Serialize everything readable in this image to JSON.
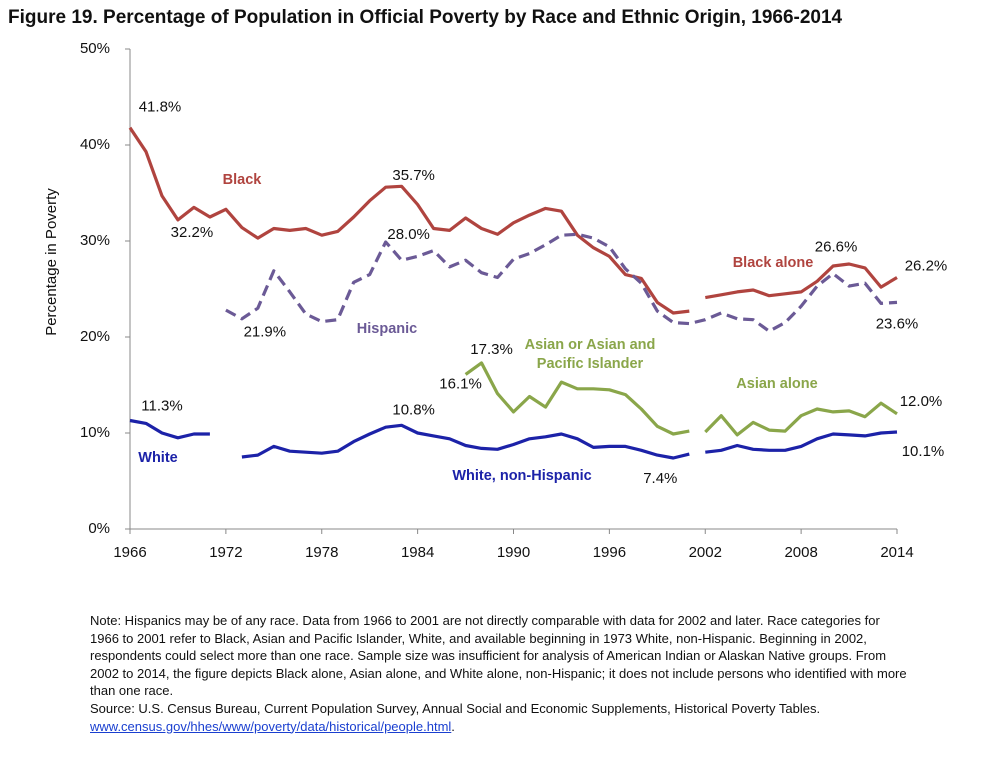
{
  "chart_data": {
    "type": "line",
    "title": "Figure 19. Percentage of Population in Official Poverty by Race and Ethnic Origin, 1966-2014",
    "y_label": "Percentage  in Poverty",
    "xlim": [
      1966,
      2014
    ],
    "xticks": [
      1966,
      1972,
      1978,
      1984,
      1990,
      1996,
      2002,
      2008,
      2014
    ],
    "ylim": [
      0,
      50
    ],
    "yticks": [
      {
        "value": 0,
        "label": "0%"
      },
      {
        "value": 10,
        "label": "10%"
      },
      {
        "value": 20,
        "label": "20%"
      },
      {
        "value": 30,
        "label": "30%"
      },
      {
        "value": 40,
        "label": "40%"
      },
      {
        "value": 50,
        "label": "50%"
      }
    ],
    "series": [
      {
        "name": "Black",
        "color": "#b0443f",
        "dash": false,
        "x": [
          1966,
          1967,
          1968,
          1969,
          1970,
          1971,
          1972,
          1973,
          1974,
          1975,
          1976,
          1977,
          1978,
          1979,
          1980,
          1981,
          1982,
          1983,
          1984,
          1985,
          1986,
          1987,
          1988,
          1989,
          1990,
          1991,
          1992,
          1993,
          1994,
          1995,
          1996,
          1997,
          1998,
          1999,
          2000,
          2001
        ],
        "values": [
          41.8,
          39.3,
          34.7,
          32.2,
          33.5,
          32.5,
          33.3,
          31.4,
          30.3,
          31.3,
          31.1,
          31.3,
          30.6,
          31.0,
          32.5,
          34.2,
          35.6,
          35.7,
          33.8,
          31.3,
          31.1,
          32.4,
          31.3,
          30.7,
          31.9,
          32.7,
          33.4,
          33.1,
          30.6,
          29.3,
          28.4,
          26.5,
          26.1,
          23.6,
          22.5,
          22.7
        ],
        "value_labels": [
          "41.8%",
          null,
          null,
          "32.2%",
          null,
          null,
          null,
          null,
          null,
          null,
          null,
          null,
          null,
          null,
          null,
          null,
          null,
          "35.7%",
          null,
          null,
          null,
          null,
          null,
          null,
          null,
          null,
          null,
          null,
          null,
          null,
          null,
          null,
          null,
          null,
          null,
          null
        ]
      },
      {
        "name": "Black alone",
        "color": "#b0443f",
        "dash": false,
        "x": [
          2002,
          2003,
          2004,
          2005,
          2006,
          2007,
          2008,
          2009,
          2010,
          2011,
          2012,
          2013,
          2014
        ],
        "values": [
          24.1,
          24.4,
          24.7,
          24.9,
          24.3,
          24.5,
          24.7,
          25.8,
          27.4,
          27.6,
          27.2,
          25.2,
          26.2
        ],
        "value_labels": [
          null,
          null,
          null,
          null,
          null,
          null,
          null,
          null,
          null,
          null,
          null,
          null,
          "26.2%"
        ]
      },
      {
        "name": "Hispanic",
        "color": "#6b5a96",
        "dash": true,
        "x": [
          1972,
          1973,
          1974,
          1975,
          1976,
          1977,
          1978,
          1979,
          1980,
          1981,
          1982,
          1983,
          1984,
          1985,
          1986,
          1987,
          1988,
          1989,
          1990,
          1991,
          1992,
          1993,
          1994,
          1995,
          1996,
          1997,
          1998,
          1999,
          2000,
          2001,
          2002,
          2003,
          2004,
          2005,
          2006,
          2007,
          2008,
          2009,
          2010,
          2011,
          2012,
          2013,
          2014
        ],
        "values": [
          22.8,
          21.9,
          23.0,
          26.9,
          24.7,
          22.4,
          21.6,
          21.8,
          25.7,
          26.5,
          29.9,
          28.0,
          28.4,
          29.0,
          27.3,
          28.0,
          26.7,
          26.2,
          28.1,
          28.7,
          29.6,
          30.6,
          30.7,
          30.3,
          29.4,
          27.1,
          25.6,
          22.7,
          21.5,
          21.4,
          21.8,
          22.5,
          21.9,
          21.8,
          20.6,
          21.5,
          23.2,
          25.3,
          26.6,
          25.3,
          25.6,
          23.5,
          23.6
        ],
        "value_labels": [
          null,
          "21.9%",
          null,
          null,
          null,
          null,
          null,
          null,
          null,
          null,
          null,
          "28.0%",
          null,
          null,
          null,
          null,
          null,
          null,
          null,
          null,
          null,
          null,
          null,
          null,
          null,
          null,
          null,
          null,
          null,
          null,
          null,
          null,
          null,
          null,
          null,
          null,
          null,
          null,
          "26.6%",
          null,
          null,
          null,
          "23.6%"
        ]
      },
      {
        "name": "Asian or Asian and Pacific Islander",
        "color": "#8aa64a",
        "dash": false,
        "x": [
          1987,
          1988,
          1989,
          1990,
          1991,
          1992,
          1993,
          1994,
          1995,
          1996,
          1997,
          1998,
          1999,
          2000,
          2001
        ],
        "values": [
          16.1,
          17.3,
          14.1,
          12.2,
          13.8,
          12.7,
          15.3,
          14.6,
          14.6,
          14.5,
          14.0,
          12.5,
          10.7,
          9.9,
          10.2
        ],
        "value_labels": [
          "16.1%",
          "17.3%",
          null,
          null,
          null,
          null,
          null,
          null,
          null,
          null,
          null,
          null,
          null,
          null,
          null
        ]
      },
      {
        "name": "Asian alone",
        "color": "#8aa64a",
        "dash": false,
        "x": [
          2002,
          2003,
          2004,
          2005,
          2006,
          2007,
          2008,
          2009,
          2010,
          2011,
          2012,
          2013,
          2014
        ],
        "values": [
          10.1,
          11.8,
          9.8,
          11.1,
          10.3,
          10.2,
          11.8,
          12.5,
          12.2,
          12.3,
          11.7,
          13.1,
          12.0
        ],
        "value_labels": [
          null,
          null,
          null,
          null,
          null,
          null,
          null,
          null,
          null,
          null,
          null,
          null,
          "12.0%"
        ]
      },
      {
        "name": "White",
        "color": "#1c22a8",
        "dash": false,
        "x": [
          1966,
          1967,
          1968,
          1969,
          1970,
          1971
        ],
        "values": [
          11.3,
          11.0,
          10.0,
          9.5,
          9.9,
          9.9
        ],
        "value_labels": [
          "11.3%",
          null,
          null,
          null,
          null,
          null
        ]
      },
      {
        "name": "White, non-Hispanic",
        "color": "#1c22a8",
        "dash": false,
        "x": [
          1973,
          1974,
          1975,
          1976,
          1977,
          1978,
          1979,
          1980,
          1981,
          1982,
          1983,
          1984,
          1985,
          1986,
          1987,
          1988,
          1989,
          1990,
          1991,
          1992,
          1993,
          1994,
          1995,
          1996,
          1997,
          1998,
          1999,
          2000,
          2001
        ],
        "values": [
          7.5,
          7.7,
          8.6,
          8.1,
          8.0,
          7.9,
          8.1,
          9.1,
          9.9,
          10.6,
          10.8,
          10.0,
          9.7,
          9.4,
          8.7,
          8.4,
          8.3,
          8.8,
          9.4,
          9.6,
          9.9,
          9.4,
          8.5,
          8.6,
          8.6,
          8.2,
          7.7,
          7.4,
          7.8
        ],
        "value_labels": [
          null,
          null,
          null,
          null,
          null,
          null,
          null,
          null,
          null,
          null,
          "10.8%",
          null,
          null,
          null,
          null,
          null,
          null,
          null,
          null,
          null,
          null,
          null,
          null,
          null,
          null,
          null,
          null,
          "7.4%",
          null
        ]
      },
      {
        "color": "#1c22a8",
        "dash": false,
        "x": [
          2002,
          2003,
          2004,
          2005,
          2006,
          2007,
          2008,
          2009,
          2010,
          2011,
          2012,
          2013,
          2014
        ],
        "values": [
          8.0,
          8.2,
          8.7,
          8.3,
          8.2,
          8.2,
          8.6,
          9.4,
          9.9,
          9.8,
          9.7,
          10.0,
          10.1
        ],
        "value_labels": [
          null,
          null,
          null,
          null,
          null,
          null,
          null,
          null,
          null,
          null,
          null,
          null,
          "10.1%"
        ]
      }
    ],
    "note": "Note:  Hispanics may be of any race. Data from 1966 to 2001 are not directly comparable with data for 2002 and later. Race categories for 1966 to 2001 refer to Black, Asian and Pacific Islander, White, and available beginning in 1973 White, non-Hispanic. Beginning in 2002, respondents could select more than one race. Sample size was insufficient for analysis of American Indian or Alaskan Native groups. From 2002 to 2014, the figure depicts Black alone, Asian alone, and White alone, non-Hispanic; it does not include persons who identified with more than one race.",
    "source": "Source:  U.S. Census Bureau, Current Population Survey, Annual Social and Economic Supplements, Historical Poverty Tables.",
    "source_url": "www.census.gov/hhes/www/poverty/data/historical/people.html"
  }
}
